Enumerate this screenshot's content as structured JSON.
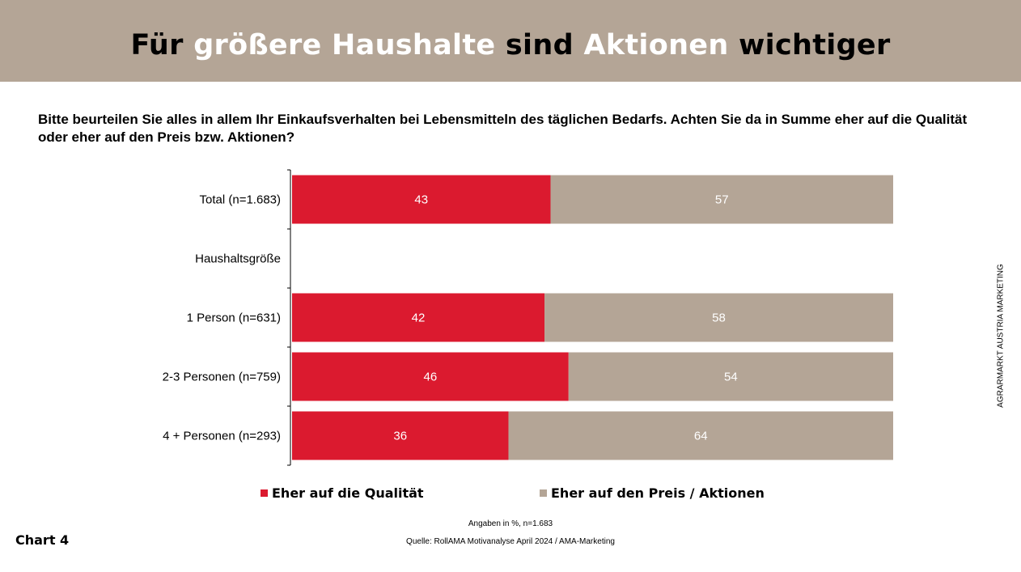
{
  "title": {
    "parts": [
      "Für",
      "größere Haushalte",
      "sind",
      "Aktionen",
      "wichtiger"
    ]
  },
  "question": "Bitte beurteilen Sie alles in allem Ihr Einkaufsverhalten bei Lebensmitteln des täglichen Bedarfs. Achten Sie da in Summe eher auf die Qualität oder eher auf den Preis bzw. Aktionen?",
  "colors": {
    "quality": "#db1a2f",
    "price": "#b4a596",
    "header": "#b4a596"
  },
  "chart_data": {
    "type": "bar",
    "orientation": "horizontal",
    "stacked": true,
    "categories": [
      "Total (n=1.683)",
      "Haushaltsgröße",
      "1 Person (n=631)",
      "2-3 Personen (n=759)",
      "4 + Personen (n=293)"
    ],
    "series": [
      {
        "name": "Eher auf die Qualität",
        "values": [
          43,
          null,
          42,
          46,
          36
        ]
      },
      {
        "name": "Eher auf den Preis / Aktionen",
        "values": [
          57,
          null,
          58,
          54,
          64
        ]
      }
    ],
    "xlim": [
      0,
      100
    ],
    "grid": false,
    "legend": "bottom"
  },
  "legend": {
    "quality": "Eher auf die Qualität",
    "price": "Eher auf den Preis / Aktionen"
  },
  "footer": {
    "note": "Angaben in %, n=1.683",
    "source": "Quelle: RollAMA Motivanalyse April 2024 / AMA-Marketing",
    "chart_number": "Chart 4",
    "side_label": "AGRARMARKT AUSTRIA MARKETING"
  }
}
